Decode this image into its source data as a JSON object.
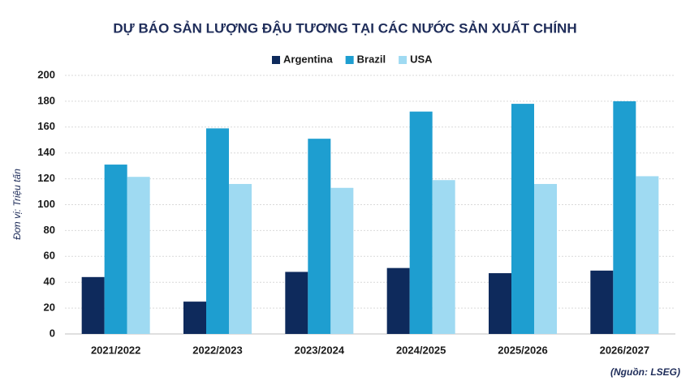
{
  "chart_data": {
    "type": "bar",
    "title": "DỰ BÁO SẢN LƯỢNG ĐẬU TƯƠNG TẠI CÁC NƯỚC SẢN XUẤT CHÍNH",
    "y_label": "Đơn vị: Triệu tấn",
    "source": "(Nguồn: LSEG)",
    "categories": [
      "2021/2022",
      "2022/2023",
      "2023/2024",
      "2024/2025",
      "2025/2026",
      "2026/2027"
    ],
    "series": [
      {
        "name": "Argentina",
        "color": "#0e2a5c",
        "values": [
          44,
          25,
          48,
          51,
          47,
          49
        ]
      },
      {
        "name": "Brazil",
        "color": "#1e9ed0",
        "values": [
          131,
          159,
          151,
          172,
          178,
          180
        ]
      },
      {
        "name": "USA",
        "color": "#9fdaf2",
        "values": [
          121.5,
          116,
          113,
          119,
          116,
          122
        ]
      }
    ],
    "ylim": [
      0,
      200
    ],
    "yticks": [
      0,
      20,
      40,
      60,
      80,
      100,
      120,
      140,
      160,
      180,
      200
    ],
    "grid": true,
    "legend": "top"
  }
}
